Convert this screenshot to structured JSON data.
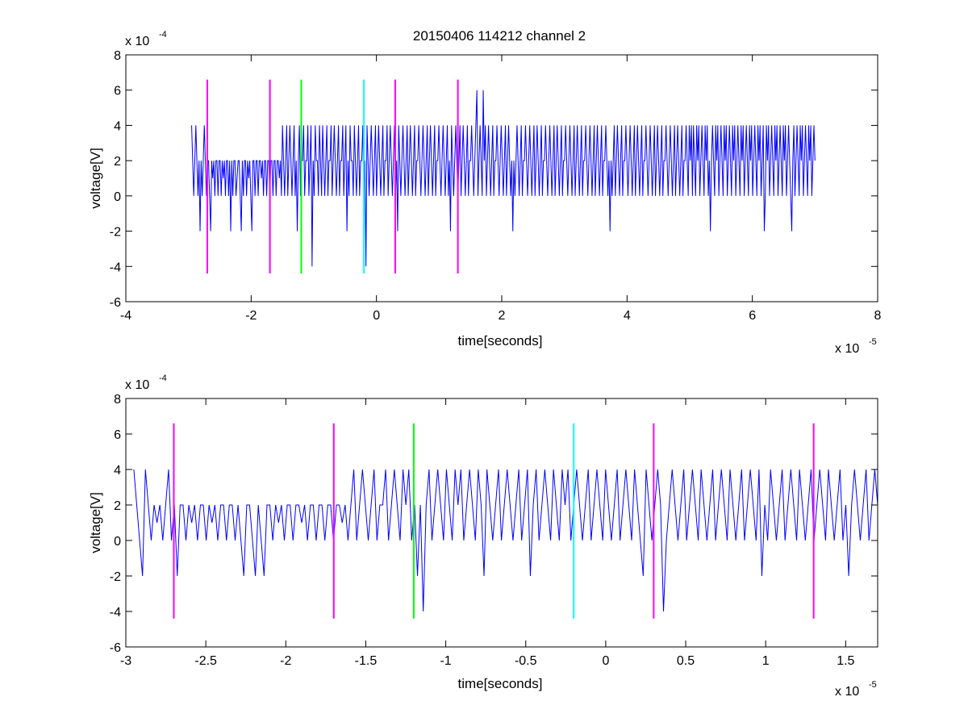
{
  "chart_data": [
    {
      "type": "line",
      "title": "20150406 114212 channel 2",
      "xlabel": "time[seconds]",
      "ylabel": "voltage[V]",
      "x_multiplier_text": "x 10",
      "x_multiplier_exp": "-5",
      "y_multiplier_text": "x 10",
      "y_multiplier_exp": "-4",
      "xlim": [
        -4,
        8
      ],
      "ylim": [
        -6,
        8
      ],
      "x_ticks": [
        -4,
        -2,
        0,
        2,
        4,
        6,
        8
      ],
      "x_tick_labels": [
        "-4",
        "-2",
        "0",
        "2",
        "4",
        "6",
        "8"
      ],
      "y_ticks": [
        -6,
        -4,
        -2,
        0,
        2,
        4,
        6,
        8
      ],
      "y_tick_labels": [
        "-6",
        "-4",
        "-2",
        "0",
        "2",
        "4",
        "6",
        "8"
      ],
      "grid": false,
      "series": [
        {
          "color": "#0000ff",
          "x_start": -2.95,
          "x_end": 7.0,
          "values": [
            4,
            2,
            0,
            2,
            4,
            2,
            0,
            2,
            -2,
            2,
            0,
            2,
            4,
            2,
            0,
            2,
            2,
            0,
            -2,
            2,
            1,
            2,
            0,
            2,
            2,
            0,
            2,
            2,
            0,
            2,
            1,
            2,
            0,
            2,
            2,
            0,
            2,
            -2,
            2,
            0,
            2,
            2,
            0,
            1,
            2,
            2,
            0,
            -2,
            2,
            0,
            2,
            2,
            0,
            2,
            1,
            2,
            0,
            -2,
            2,
            2,
            0,
            2,
            2,
            0,
            2,
            2,
            1,
            2,
            0,
            2,
            2,
            0,
            2,
            2,
            0,
            2,
            2,
            0,
            2,
            2,
            0,
            2,
            2,
            1,
            2,
            0,
            4,
            2,
            0,
            2,
            4,
            0,
            2,
            4,
            2,
            0,
            2,
            4,
            0,
            2,
            -2,
            2,
            4,
            0,
            2,
            2,
            4,
            0,
            2,
            2,
            4,
            0,
            2,
            4,
            -4,
            2,
            0,
            4,
            2,
            2,
            0,
            4,
            2,
            0,
            4,
            2,
            0,
            2,
            4,
            0,
            2,
            2,
            4,
            0,
            2,
            4,
            2,
            0,
            2,
            4,
            0,
            2,
            2,
            4,
            0,
            2,
            4,
            -2,
            2,
            0,
            4,
            2,
            2,
            0,
            4,
            2,
            0,
            2,
            4,
            0,
            2,
            2,
            4,
            0,
            2,
            -4,
            4,
            2,
            0,
            2,
            4,
            2,
            0,
            2,
            4,
            0,
            2,
            4,
            2,
            0,
            2,
            4,
            0,
            2,
            2,
            4,
            0,
            2,
            4,
            2,
            0,
            2,
            4,
            0,
            2,
            -2,
            4,
            2,
            0,
            2,
            4,
            2,
            0,
            2,
            4,
            0,
            2,
            4,
            2,
            0,
            2,
            4,
            0,
            2,
            2,
            4,
            2,
            0,
            2,
            4,
            2,
            0,
            2,
            4,
            0,
            2,
            4,
            2,
            0,
            2,
            4,
            0,
            2,
            2,
            4,
            2,
            0,
            2,
            4,
            2,
            0,
            2,
            4,
            0,
            2,
            -2,
            4,
            2,
            0,
            2,
            4,
            2,
            0,
            2,
            4,
            0,
            2,
            4,
            2,
            0,
            2,
            4,
            0,
            2,
            2,
            4,
            2,
            0,
            2,
            4,
            6,
            0,
            2,
            4,
            2,
            0,
            6,
            2,
            4,
            0,
            2,
            4,
            2,
            0,
            2,
            4,
            0,
            2,
            2,
            4,
            2,
            0,
            2,
            4,
            2,
            0,
            2,
            4,
            0,
            2,
            4,
            2,
            0,
            2,
            -2,
            2,
            0,
            2,
            4,
            2,
            0,
            2,
            4,
            0,
            2,
            2,
            4,
            2,
            0,
            2,
            4,
            2,
            0,
            2,
            4,
            0,
            2,
            4,
            2,
            0,
            2,
            4,
            0,
            2,
            2,
            4,
            2,
            0,
            2,
            4,
            2,
            0,
            2,
            4,
            0,
            2,
            4,
            2,
            0,
            2,
            4,
            0,
            2,
            2,
            4,
            2,
            0,
            2,
            4,
            2,
            0,
            2,
            4,
            0,
            2,
            4,
            2,
            0,
            2,
            4,
            0,
            2,
            2,
            4,
            2,
            0,
            2,
            4,
            2,
            0,
            2,
            4,
            0,
            2,
            4,
            2,
            0,
            2,
            4,
            0,
            2,
            2,
            4,
            2,
            0,
            2,
            -2,
            2,
            0,
            2,
            4,
            0,
            2,
            4,
            2,
            0,
            2,
            4,
            0,
            2,
            2,
            4,
            2,
            0,
            2,
            4,
            2,
            0,
            2,
            4,
            0,
            2,
            4,
            2,
            0,
            2,
            4,
            0,
            2,
            2,
            4,
            2,
            0,
            2,
            4,
            2,
            0,
            2,
            4,
            0,
            2,
            4,
            2,
            0,
            2,
            4,
            0,
            2,
            2,
            4,
            2,
            0,
            2,
            4,
            2,
            0,
            2,
            4,
            0,
            2,
            4,
            2,
            0,
            2,
            4,
            0,
            2,
            2,
            4,
            2,
            0,
            4,
            2,
            4,
            0,
            4,
            2,
            0,
            4,
            2,
            4,
            0,
            2,
            4,
            2,
            0,
            4,
            2,
            4,
            0,
            2,
            -2,
            2,
            4,
            2,
            0,
            4,
            2,
            4,
            0,
            2,
            4,
            2,
            0,
            4,
            2,
            4,
            0,
            2,
            4,
            2,
            0,
            4,
            2,
            4,
            0,
            2,
            4,
            2,
            0,
            4,
            2,
            4,
            0,
            2,
            4,
            2,
            0,
            4,
            2,
            4,
            0,
            2,
            4,
            2,
            0,
            4,
            2,
            4,
            0,
            2,
            4,
            -2,
            0,
            4,
            2,
            4,
            0,
            2,
            4,
            2,
            0,
            4,
            2,
            4,
            0,
            2,
            4,
            2,
            0,
            4,
            2,
            4,
            0,
            2,
            4,
            2,
            0,
            -2,
            2,
            4,
            0,
            2,
            4,
            2,
            0,
            4,
            2,
            4,
            0,
            2,
            4,
            2,
            0,
            4,
            2,
            4,
            0,
            2,
            4,
            2
          ]
        }
      ],
      "markers": [
        {
          "x": -2.7,
          "y_range": [
            -4.4,
            6.6
          ],
          "color": "#ff00ff"
        },
        {
          "x": -1.7,
          "y_range": [
            -4.4,
            6.6
          ],
          "color": "#ff00ff"
        },
        {
          "x": -1.2,
          "y_range": [
            -4.4,
            6.6
          ],
          "color": "#00ff00"
        },
        {
          "x": -0.2,
          "y_range": [
            -4.4,
            6.6
          ],
          "color": "#00ffff"
        },
        {
          "x": 0.3,
          "y_range": [
            -4.4,
            6.6
          ],
          "color": "#ff00ff"
        },
        {
          "x": 1.3,
          "y_range": [
            -4.4,
            6.6
          ],
          "color": "#ff00ff"
        }
      ]
    },
    {
      "type": "line",
      "xlabel": "time[seconds]",
      "ylabel": "voltage[V]",
      "x_multiplier_text": "x 10",
      "x_multiplier_exp": "-5",
      "y_multiplier_text": "x 10",
      "y_multiplier_exp": "-4",
      "xlim": [
        -3,
        1.7
      ],
      "ylim": [
        -6,
        8
      ],
      "x_ticks": [
        -3,
        -2.5,
        -2,
        -1.5,
        -1,
        -0.5,
        0,
        0.5,
        1,
        1.5
      ],
      "x_tick_labels": [
        "-3",
        "-2.5",
        "-2",
        "-1.5",
        "-1",
        "-0.5",
        "0",
        "0.5",
        "1",
        "1.5"
      ],
      "y_ticks": [
        -6,
        -4,
        -2,
        0,
        2,
        4,
        6,
        8
      ],
      "y_tick_labels": [
        "-6",
        "-4",
        "-2",
        "0",
        "2",
        "4",
        "6",
        "8"
      ],
      "grid": false,
      "series": [
        {
          "color": "#0000ff",
          "x_start": -2.95,
          "x_end": 1.7,
          "values": [
            4,
            2,
            0,
            -2,
            4,
            2,
            0,
            2,
            1,
            2,
            0,
            2,
            4,
            0,
            2,
            -2,
            2,
            2,
            0,
            2,
            1,
            2,
            0,
            2,
            2,
            0,
            2,
            1,
            2,
            0,
            2,
            2,
            0,
            2,
            2,
            0,
            2,
            0,
            -2,
            2,
            2,
            0,
            -2,
            2,
            0,
            -2,
            2,
            2,
            0,
            2,
            1,
            2,
            0,
            2,
            2,
            0,
            2,
            2,
            1,
            2,
            0,
            2,
            2,
            0,
            2,
            2,
            0,
            2,
            2,
            0,
            2,
            2,
            1,
            2,
            0,
            2,
            4,
            0,
            2,
            4,
            2,
            0,
            2,
            4,
            0,
            2,
            2,
            4,
            0,
            2,
            4,
            2,
            0,
            4,
            2,
            4,
            0,
            2,
            -2,
            2,
            -4,
            2,
            4,
            0,
            2,
            4,
            2,
            0,
            4,
            2,
            0,
            4,
            2,
            4,
            0,
            2,
            4,
            2,
            0,
            4,
            2,
            -2,
            4,
            2,
            0,
            2,
            4,
            0,
            2,
            4,
            2,
            0,
            2,
            4,
            0,
            2,
            4,
            -2,
            2,
            4,
            0,
            2,
            4,
            2,
            0,
            4,
            2,
            0,
            4,
            2,
            4,
            0,
            2,
            4,
            2,
            0,
            2,
            4,
            0,
            2,
            4,
            2,
            0,
            4,
            2,
            0,
            2,
            4,
            0,
            2,
            4,
            2,
            0,
            4,
            2,
            0,
            -2,
            4,
            2,
            0,
            2,
            4,
            2,
            -4,
            0,
            2,
            4,
            2,
            0,
            2,
            4,
            0,
            2,
            4,
            2,
            0,
            4,
            2,
            0,
            2,
            4,
            0,
            2,
            4,
            2,
            0,
            4,
            2,
            0,
            2,
            4,
            0,
            2,
            4,
            2,
            0,
            4,
            -2,
            2,
            0,
            4,
            2,
            0,
            2,
            4,
            0,
            2,
            4,
            2,
            0,
            4,
            2,
            0,
            2,
            4,
            0,
            2,
            4,
            2,
            0,
            4,
            2,
            0,
            2,
            4,
            0,
            2,
            -2,
            2,
            4,
            2,
            0,
            2,
            4,
            0,
            2,
            4,
            2
          ]
        }
      ],
      "markers": [
        {
          "x": -2.7,
          "y_range": [
            -4.4,
            6.6
          ],
          "color": "#ff00ff"
        },
        {
          "x": -1.7,
          "y_range": [
            -4.4,
            6.6
          ],
          "color": "#ff00ff"
        },
        {
          "x": -1.2,
          "y_range": [
            -4.4,
            6.6
          ],
          "color": "#00ff00"
        },
        {
          "x": -0.2,
          "y_range": [
            -4.4,
            6.6
          ],
          "color": "#00ffff"
        },
        {
          "x": 0.3,
          "y_range": [
            -4.4,
            6.6
          ],
          "color": "#ff00ff"
        },
        {
          "x": 1.3,
          "y_range": [
            -4.4,
            6.6
          ],
          "color": "#ff00ff"
        }
      ]
    }
  ]
}
